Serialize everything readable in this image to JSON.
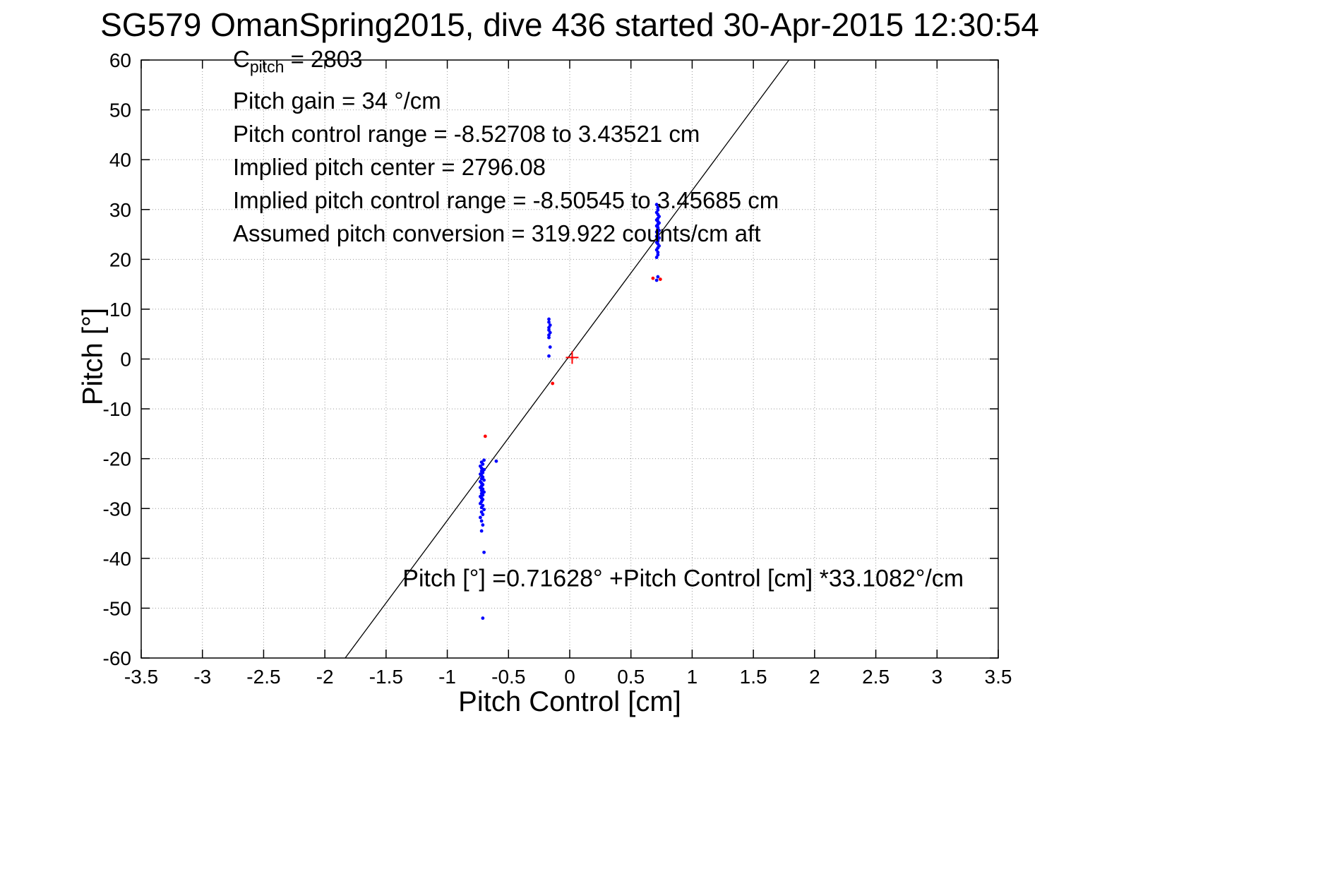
{
  "title": "SG579 OmanSpring2015, dive 436 started 30-Apr-2015 12:30:54",
  "annotations": {
    "c_label": "C",
    "c_sub": "pitch",
    "c_value": " = 2803",
    "lines": [
      "Pitch gain = 34 °/cm",
      "Pitch control range = -8.52708 to 3.43521 cm",
      "Implied pitch center = 2796.08",
      "Implied pitch control range = -8.50545 to 3.45685 cm",
      "Assumed pitch conversion = 319.922 counts/cm aft"
    ]
  },
  "chart_data": {
    "type": "scatter",
    "title": "SG579 OmanSpring2015, dive 436 started 30-Apr-2015 12:30:54",
    "xlabel": "Pitch Control [cm]",
    "ylabel": "Pitch [°]",
    "xlim": [
      -3.5,
      3.5
    ],
    "ylim": [
      -60,
      60
    ],
    "xticks": [
      "-3.5",
      "-3",
      "-2.5",
      "-2",
      "-1.5",
      "-1",
      "-0.5",
      "0",
      "0.5",
      "1",
      "1.5",
      "2",
      "2.5",
      "3",
      "3.5"
    ],
    "yticks": [
      "-60",
      "-50",
      "-40",
      "-30",
      "-20",
      "-10",
      "0",
      "10",
      "20",
      "30",
      "40",
      "50",
      "60"
    ],
    "grid": true,
    "legend": "none",
    "fit_line": {
      "slope": 33.1082,
      "intercept": 0.71628,
      "color": "#000000",
      "label": "Pitch [°] =0.71628° +Pitch Control [cm] *33.1082°/cm",
      "label_x": -1.365,
      "label_y": -45.6
    },
    "series": [
      {
        "name": "pitch-observations-blue",
        "marker": "dot",
        "color": "#0000ff",
        "size": 2.4,
        "points": [
          [
            -0.7,
            -20.3
          ],
          [
            -0.72,
            -20.7
          ],
          [
            -0.71,
            -21.1
          ],
          [
            -0.73,
            -21.5
          ],
          [
            -0.72,
            -21.9
          ],
          [
            -0.7,
            -22.2
          ],
          [
            -0.72,
            -22.5
          ],
          [
            -0.71,
            -22.8
          ],
          [
            -0.73,
            -23.1
          ],
          [
            -0.72,
            -23.4
          ],
          [
            -0.71,
            -23.7
          ],
          [
            -0.72,
            -24.0
          ],
          [
            -0.7,
            -24.3
          ],
          [
            -0.73,
            -24.6
          ],
          [
            -0.72,
            -24.9
          ],
          [
            -0.71,
            -25.2
          ],
          [
            -0.72,
            -25.5
          ],
          [
            -0.73,
            -25.8
          ],
          [
            -0.71,
            -26.1
          ],
          [
            -0.72,
            -26.4
          ],
          [
            -0.7,
            -26.7
          ],
          [
            -0.72,
            -27.0
          ],
          [
            -0.71,
            -27.3
          ],
          [
            -0.73,
            -27.6
          ],
          [
            -0.72,
            -27.9
          ],
          [
            -0.71,
            -28.2
          ],
          [
            -0.72,
            -28.6
          ],
          [
            -0.73,
            -29.0
          ],
          [
            -0.71,
            -29.4
          ],
          [
            -0.72,
            -29.8
          ],
          [
            -0.7,
            -30.2
          ],
          [
            -0.72,
            -30.7
          ],
          [
            -0.71,
            -31.2
          ],
          [
            -0.73,
            -31.8
          ],
          [
            -0.72,
            -32.5
          ],
          [
            -0.71,
            -33.3
          ],
          [
            -0.72,
            -34.5
          ],
          [
            -0.6,
            -20.5
          ],
          [
            -0.7,
            -38.8
          ],
          [
            -0.71,
            -52.0
          ],
          [
            -0.17,
            8.0
          ],
          [
            -0.17,
            7.4
          ],
          [
            -0.16,
            6.8
          ],
          [
            -0.17,
            6.3
          ],
          [
            -0.17,
            5.8
          ],
          [
            -0.16,
            5.3
          ],
          [
            -0.17,
            4.8
          ],
          [
            -0.17,
            4.3
          ],
          [
            -0.16,
            2.4
          ],
          [
            -0.17,
            0.6
          ],
          [
            0.71,
            31.0
          ],
          [
            0.72,
            30.4
          ],
          [
            0.72,
            29.9
          ],
          [
            0.71,
            29.4
          ],
          [
            0.72,
            29.0
          ],
          [
            0.73,
            28.6
          ],
          [
            0.72,
            28.2
          ],
          [
            0.71,
            27.9
          ],
          [
            0.72,
            27.6
          ],
          [
            0.73,
            27.3
          ],
          [
            0.72,
            27.0
          ],
          [
            0.71,
            26.7
          ],
          [
            0.72,
            26.4
          ],
          [
            0.72,
            26.1
          ],
          [
            0.73,
            25.8
          ],
          [
            0.71,
            25.5
          ],
          [
            0.72,
            25.2
          ],
          [
            0.72,
            24.9
          ],
          [
            0.71,
            24.6
          ],
          [
            0.73,
            24.3
          ],
          [
            0.72,
            24.0
          ],
          [
            0.72,
            23.7
          ],
          [
            0.71,
            23.4
          ],
          [
            0.72,
            23.1
          ],
          [
            0.73,
            22.7
          ],
          [
            0.72,
            22.3
          ],
          [
            0.71,
            21.9
          ],
          [
            0.72,
            21.4
          ],
          [
            0.72,
            20.9
          ],
          [
            0.71,
            20.4
          ],
          [
            0.72,
            16.5
          ],
          [
            0.71,
            15.8
          ]
        ]
      },
      {
        "name": "flagged-points-red",
        "marker": "dot",
        "color": "#ff0000",
        "size": 2.4,
        "points": [
          [
            -0.69,
            -15.5
          ],
          [
            -0.14,
            -4.9
          ],
          [
            0.68,
            16.2
          ],
          [
            0.74,
            16.0
          ]
        ]
      },
      {
        "name": "implied-center-marker-red",
        "marker": "plus",
        "color": "#ff0000",
        "size": 9,
        "points": [
          [
            0.02,
            0.3
          ]
        ]
      }
    ]
  }
}
